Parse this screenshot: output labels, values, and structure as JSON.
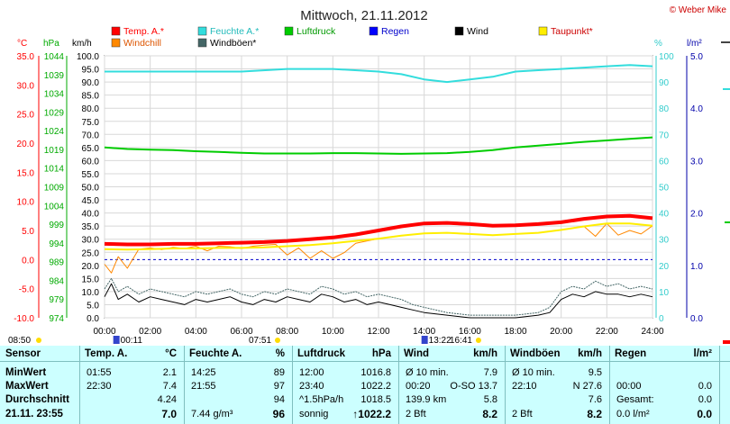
{
  "header": {
    "title": "Mittwoch, 21.11.2012",
    "credit": "© Weber Mike"
  },
  "legend": [
    {
      "label": "Temp. A.*",
      "color": "#ff0000"
    },
    {
      "label": "Feuchte A.*",
      "color": "#33dddd"
    },
    {
      "label": "Luftdruck",
      "color": "#00cc00"
    },
    {
      "label": "Regen",
      "color": "#0000ff"
    },
    {
      "label": "Wind",
      "color": "#000000"
    },
    {
      "label": "Taupunkt*",
      "color": "#ffee00"
    },
    {
      "label": "Windchill",
      "color": "#ff8800"
    },
    {
      "label": "Windböen*",
      "color": "#446666"
    }
  ],
  "units": {
    "temp": "°C",
    "pressure": "hPa",
    "wind": "km/h",
    "humidity": "%",
    "rain": "l/m²"
  },
  "chart_data": {
    "type": "line",
    "x_ticks": [
      "00:00",
      "02:00",
      "04:00",
      "06:00",
      "08:00",
      "10:00",
      "12:00",
      "14:00",
      "16:00",
      "18:00",
      "20:00",
      "22:00",
      "24:00"
    ],
    "xlim": [
      0,
      24
    ],
    "temp_ticks": [
      "35.0",
      "30.0",
      "25.0",
      "20.0",
      "15.0",
      "10.0",
      "5.0",
      "0.0",
      "-5.0",
      "-10.0"
    ],
    "temp_lim": [
      -10,
      35
    ],
    "pressure_ticks": [
      "1044",
      "1039",
      "1034",
      "1029",
      "1024",
      "1019",
      "1014",
      "1009",
      "1004",
      "999",
      "994",
      "989",
      "984",
      "979",
      "974"
    ],
    "pressure_lim": [
      974,
      1044
    ],
    "wind_ticks": [
      "100.0",
      "95.0",
      "90.0",
      "85.0",
      "80.0",
      "75.0",
      "70.0",
      "65.0",
      "60.0",
      "55.0",
      "50.0",
      "45.0",
      "40.0",
      "35.0",
      "30.0",
      "25.0",
      "20.0",
      "15.0",
      "10.0",
      "5.0",
      "0.0"
    ],
    "wind_lim": [
      0,
      100
    ],
    "humidity_ticks": [
      "100",
      "90",
      "80",
      "70",
      "60",
      "50",
      "40",
      "30",
      "20",
      "10",
      "0"
    ],
    "humidity_lim": [
      0,
      100
    ],
    "rain_ticks": [
      "5.0",
      "4.0",
      "3.0",
      "2.0",
      "1.0",
      "0.0"
    ],
    "rain_lim": [
      0,
      5
    ],
    "reference_line_temp": 0.0,
    "series": [
      {
        "name": "Temp. A.*",
        "axis": "temp",
        "color": "#ff0000",
        "width": 4,
        "x": [
          0,
          1,
          2,
          3,
          4,
          5,
          6,
          7,
          8,
          9,
          10,
          11,
          12,
          13,
          14,
          15,
          16,
          17,
          18,
          19,
          20,
          21,
          22,
          23,
          24
        ],
        "y": [
          2.7,
          2.6,
          2.6,
          2.7,
          2.7,
          2.8,
          2.9,
          3.0,
          3.2,
          3.5,
          3.8,
          4.3,
          5.0,
          5.7,
          6.2,
          6.3,
          6.1,
          5.8,
          5.9,
          6.1,
          6.4,
          7.0,
          7.4,
          7.5,
          7.1
        ]
      },
      {
        "name": "Taupunkt*",
        "axis": "temp",
        "color": "#ffee00",
        "width": 2,
        "x": [
          0,
          1,
          2,
          3,
          4,
          5,
          6,
          7,
          8,
          9,
          10,
          11,
          12,
          13,
          14,
          15,
          16,
          17,
          18,
          19,
          20,
          21,
          22,
          23,
          24
        ],
        "y": [
          1.8,
          1.7,
          1.8,
          1.9,
          1.9,
          2.0,
          2.0,
          2.1,
          2.3,
          2.5,
          2.8,
          3.2,
          3.6,
          4.1,
          4.5,
          4.6,
          4.4,
          4.2,
          4.4,
          4.6,
          5.1,
          5.7,
          6.2,
          6.2,
          5.8
        ]
      },
      {
        "name": "Windchill",
        "axis": "temp",
        "color": "#ff8800",
        "width": 1,
        "x": [
          0,
          0.3,
          0.6,
          1,
          1.5,
          2,
          2.5,
          3,
          3.5,
          4,
          4.5,
          5,
          5.5,
          6,
          6.5,
          7,
          7.5,
          8,
          8.5,
          9,
          9.5,
          10,
          10.5,
          11,
          11.5,
          12,
          13,
          14,
          15,
          16,
          17,
          18,
          19,
          20,
          21,
          21.5,
          22,
          22.5,
          23,
          23.5,
          24
        ],
        "y": [
          -0.8,
          -2.3,
          0.5,
          -1.5,
          1.8,
          2.0,
          1.7,
          2.1,
          1.9,
          2.3,
          1.5,
          2.3,
          2.2,
          1.9,
          2.3,
          2.5,
          2.6,
          0.8,
          2.0,
          0.2,
          1.5,
          0.2,
          1.2,
          2.8,
          3.2,
          3.6,
          4.1,
          4.5,
          4.6,
          4.4,
          4.2,
          4.4,
          4.6,
          5.1,
          5.7,
          4.0,
          6.2,
          4.2,
          5.0,
          4.4,
          5.8
        ]
      },
      {
        "name": "Feuchte A.*",
        "axis": "humidity",
        "color": "#33dddd",
        "width": 2,
        "x": [
          0,
          2,
          4,
          6,
          8,
          10,
          12,
          13,
          14,
          15,
          16,
          17,
          18,
          19,
          20,
          21,
          22,
          23,
          24
        ],
        "y": [
          94,
          94,
          94,
          94,
          95,
          95,
          94,
          93,
          91,
          90,
          91,
          92,
          94,
          94.5,
          95,
          95.5,
          96,
          96.5,
          96
        ]
      },
      {
        "name": "Luftdruck",
        "axis": "pressure",
        "color": "#00cc00",
        "width": 2,
        "x": [
          0,
          1,
          2,
          3,
          4,
          5,
          6,
          7,
          8,
          9,
          10,
          11,
          12,
          13,
          14,
          15,
          16,
          17,
          18,
          19,
          20,
          21,
          22,
          23,
          24
        ],
        "y": [
          1019.5,
          1019.1,
          1018.9,
          1018.8,
          1018.5,
          1018.3,
          1018.1,
          1017.9,
          1017.9,
          1017.9,
          1018.0,
          1018.0,
          1017.9,
          1017.8,
          1017.9,
          1018.0,
          1018.3,
          1018.8,
          1019.5,
          1020.0,
          1020.5,
          1021.0,
          1021.4,
          1021.8,
          1022.2
        ]
      },
      {
        "name": "Wind",
        "axis": "wind",
        "color": "#000000",
        "width": 1,
        "x": [
          0,
          0.3,
          0.6,
          1,
          1.5,
          2,
          2.5,
          3,
          3.5,
          4,
          4.5,
          5,
          5.5,
          6,
          6.5,
          7,
          7.5,
          8,
          8.5,
          9,
          9.5,
          10,
          10.5,
          11,
          11.5,
          12,
          12.5,
          13,
          13.5,
          14,
          15,
          16,
          17,
          18,
          19,
          19.5,
          20,
          20.5,
          21,
          21.5,
          22,
          22.5,
          23,
          23.5,
          24
        ],
        "y": [
          8,
          13,
          7,
          9,
          6,
          8,
          7,
          6,
          5,
          7,
          6,
          7,
          8,
          6,
          5,
          7,
          6,
          8,
          7,
          6,
          9,
          8,
          6,
          7,
          5,
          6,
          5,
          4,
          3,
          2,
          1,
          0,
          0,
          0,
          1,
          2,
          7,
          9,
          8,
          10,
          9,
          9,
          8,
          9,
          8
        ]
      },
      {
        "name": "Windböen*",
        "axis": "wind",
        "color": "#446666",
        "width": 1,
        "dash": "2,1",
        "x": [
          0,
          0.3,
          0.6,
          1,
          1.5,
          2,
          2.5,
          3,
          3.5,
          4,
          4.5,
          5,
          5.5,
          6,
          6.5,
          7,
          7.5,
          8,
          8.5,
          9,
          9.5,
          10,
          10.5,
          11,
          11.5,
          12,
          12.5,
          13,
          13.5,
          14,
          15,
          16,
          17,
          18,
          19,
          19.5,
          20,
          20.5,
          21,
          21.5,
          22,
          22.5,
          23,
          23.5,
          24
        ],
        "y": [
          11,
          15,
          10,
          12,
          9,
          11,
          10,
          9,
          8,
          10,
          9,
          10,
          11,
          9,
          8,
          10,
          9,
          11,
          10,
          9,
          12,
          11,
          9,
          10,
          8,
          9,
          8,
          7,
          5,
          4,
          2,
          1,
          1,
          1,
          2,
          4,
          10,
          12,
          11,
          14,
          12,
          13,
          11,
          12,
          11
        ]
      }
    ]
  },
  "markers": {
    "row1": [
      {
        "text": "08:50",
        "x": 1.5
      },
      {
        "text": "07:51",
        "x": 7.5
      },
      {
        "text": "16:41",
        "x": 16.3
      }
    ],
    "row2": [
      {
        "text": "00:11",
        "x": 0.5
      },
      {
        "text": "13:22",
        "x": 14.0
      }
    ]
  },
  "table": {
    "row_labels": [
      "Sensor",
      "MinWert",
      "MaxWert",
      "Durchschnitt",
      "21.11. 23:55"
    ],
    "temp": {
      "title": "Temp. A.",
      "unit": "°C",
      "rows": [
        [
          "01:55",
          "2.1"
        ],
        [
          "22:30",
          "7.4"
        ],
        [
          "",
          "4.24"
        ],
        [
          "",
          "7.0"
        ]
      ]
    },
    "humidity": {
      "title": "Feuchte A.",
      "unit": "%",
      "rows": [
        [
          "14:25",
          "89"
        ],
        [
          "21:55",
          "97"
        ],
        [
          "",
          "94"
        ],
        [
          "7.44 g/m³",
          "96"
        ]
      ]
    },
    "pressure": {
      "title": "Luftdruck",
      "unit": "hPa",
      "rows": [
        [
          "12:00",
          "1016.8"
        ],
        [
          "23:40",
          "1022.2"
        ],
        [
          "^1.5hPa/h",
          "1018.5"
        ],
        [
          "sonnig",
          "↑1022.2"
        ]
      ]
    },
    "wind": {
      "title": "Wind",
      "unit": "km/h",
      "rows": [
        [
          "Ø 10 min.",
          "7.9"
        ],
        [
          "00:20",
          "O-SO 13.7"
        ],
        [
          "139.9 km",
          "5.8"
        ],
        [
          "2 Bft",
          "8.2"
        ]
      ]
    },
    "gusts": {
      "title": "Windböen",
      "unit": "km/h",
      "rows": [
        [
          "Ø 10 min.",
          "9.5"
        ],
        [
          "22:10",
          "N 27.6"
        ],
        [
          "",
          "7.6"
        ],
        [
          "2 Bft",
          "8.2"
        ]
      ]
    },
    "rain": {
      "title": "Regen",
      "unit": "l/m²",
      "rows": [
        [
          "",
          ""
        ],
        [
          "00:00",
          "0.0"
        ],
        [
          "Gesamt:",
          "0.0"
        ],
        [
          "0.0 l/m²",
          "0.0"
        ]
      ]
    }
  }
}
